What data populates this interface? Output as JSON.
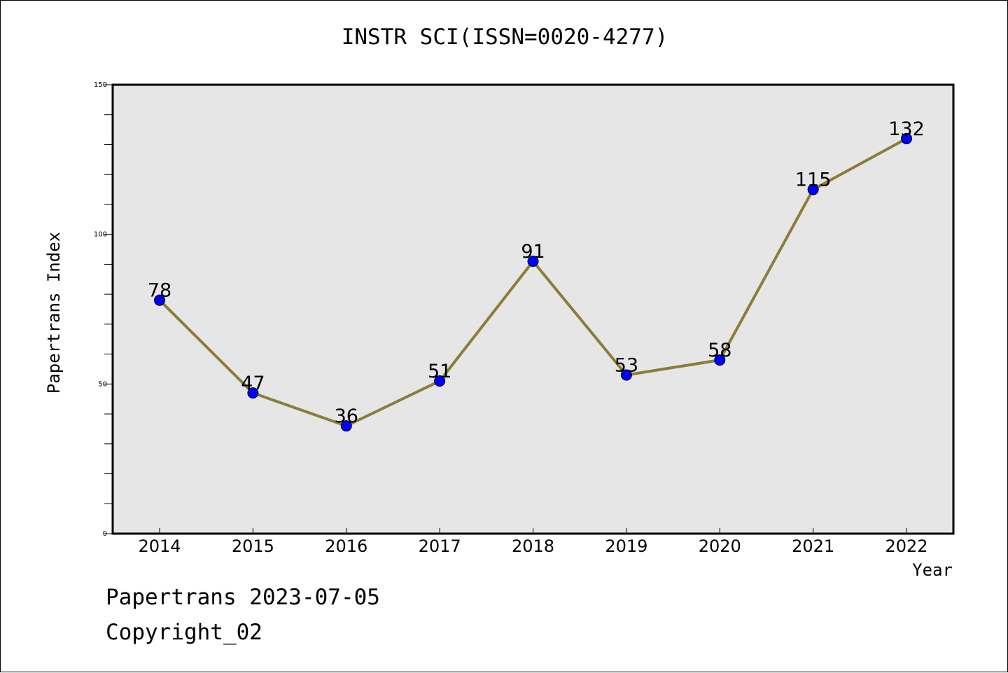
{
  "chart_data": {
    "type": "line",
    "title": "INSTR SCI(ISSN=0020-4277)",
    "xlabel": "Year",
    "ylabel": "Papertrans Index",
    "categories": [
      "2014",
      "2015",
      "2016",
      "2017",
      "2018",
      "2019",
      "2020",
      "2021",
      "2022"
    ],
    "series": [
      {
        "values": [
          78,
          47,
          36,
          51,
          91,
          53,
          58,
          115,
          132
        ]
      }
    ],
    "ylim": [
      0,
      150
    ],
    "yticks": [
      0,
      50,
      100,
      150
    ],
    "grid": false,
    "data_labels": true,
    "colors": {
      "line": "#8b7d3a",
      "marker": "#0000ff",
      "plot_background": "#e6e6e6"
    }
  },
  "footer": {
    "date_text": "Papertrans 2023-07-05",
    "copyright_text": "Copyright_02"
  }
}
